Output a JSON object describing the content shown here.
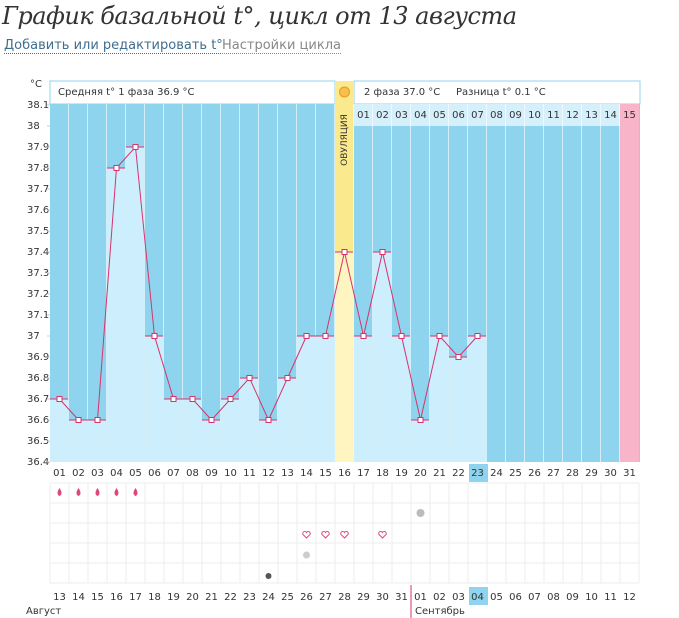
{
  "header": {
    "title": "График базальной t°, цикл от 13 августа",
    "links": [
      "Добавить или редактировать t°",
      "Настройки цикла"
    ]
  },
  "chart_data": {
    "type": "line",
    "unit": "°C",
    "phase1": "Средняя t° 1 фаза 36.9 °C",
    "phase2": "2 фаза 37.0 °C",
    "difference": "Разница t° 0.1 °C",
    "ovulation": "ОВУЛЯЦИЯ",
    "categories": [
      "01",
      "02",
      "03",
      "04",
      "05",
      "06",
      "07",
      "08",
      "09",
      "10",
      "11",
      "12",
      "13",
      "14",
      "15",
      "16",
      "17",
      "18",
      "19",
      "20",
      "21",
      "22",
      "23",
      "24",
      "25",
      "26",
      "27",
      "28",
      "29",
      "30",
      "31"
    ],
    "values": [
      36.7,
      36.6,
      36.6,
      37.8,
      37.9,
      37.0,
      36.7,
      36.7,
      36.6,
      36.7,
      36.8,
      36.6,
      36.8,
      37.0,
      37.0,
      37.4,
      37.0,
      37.4,
      37.0,
      36.6,
      37.0,
      36.9,
      37.0,
      null,
      null,
      null,
      null,
      null,
      null,
      null,
      null
    ],
    "color": "#d6336c",
    "phase2_days": [
      "01",
      "02",
      "03",
      "04",
      "05",
      "06",
      "07",
      "08",
      "09",
      "10",
      "11",
      "12",
      "13",
      "14",
      "15"
    ],
    "dates": [
      "13",
      "14",
      "15",
      "16",
      "17",
      "18",
      "19",
      "20",
      "21",
      "22",
      "23",
      "24",
      "25",
      "26",
      "27",
      "28",
      "29",
      "30",
      "31",
      "01",
      "02",
      "03",
      "04",
      "05",
      "06",
      "07",
      "08",
      "09",
      "10",
      "11",
      "12"
    ],
    "date_colors": [
      "#333",
      "#333",
      "#333",
      "#333",
      "#d6336c",
      "#d6336c",
      "#333",
      "#333",
      "#333",
      "#333",
      "#333",
      "#d6336c",
      "#d6336c",
      "#333",
      "#333",
      "#333",
      "#333",
      "#333",
      "#d6336c",
      "#d6336c",
      "#333",
      "#333",
      "#333",
      "#333",
      "#333",
      "#d6336c",
      "#d6336c",
      "#333",
      "#333",
      "#333",
      "#333"
    ],
    "months": [
      "Август",
      "Сентябрь"
    ],
    "ylim": [
      36.4,
      38.1
    ],
    "yticks": [
      36.4,
      36.5,
      36.6,
      36.7,
      36.8,
      36.9,
      37,
      37.1,
      37.2,
      37.3,
      37.4,
      37.5,
      37.6,
      37.7,
      37.8,
      37.9,
      38,
      38.1
    ]
  }
}
